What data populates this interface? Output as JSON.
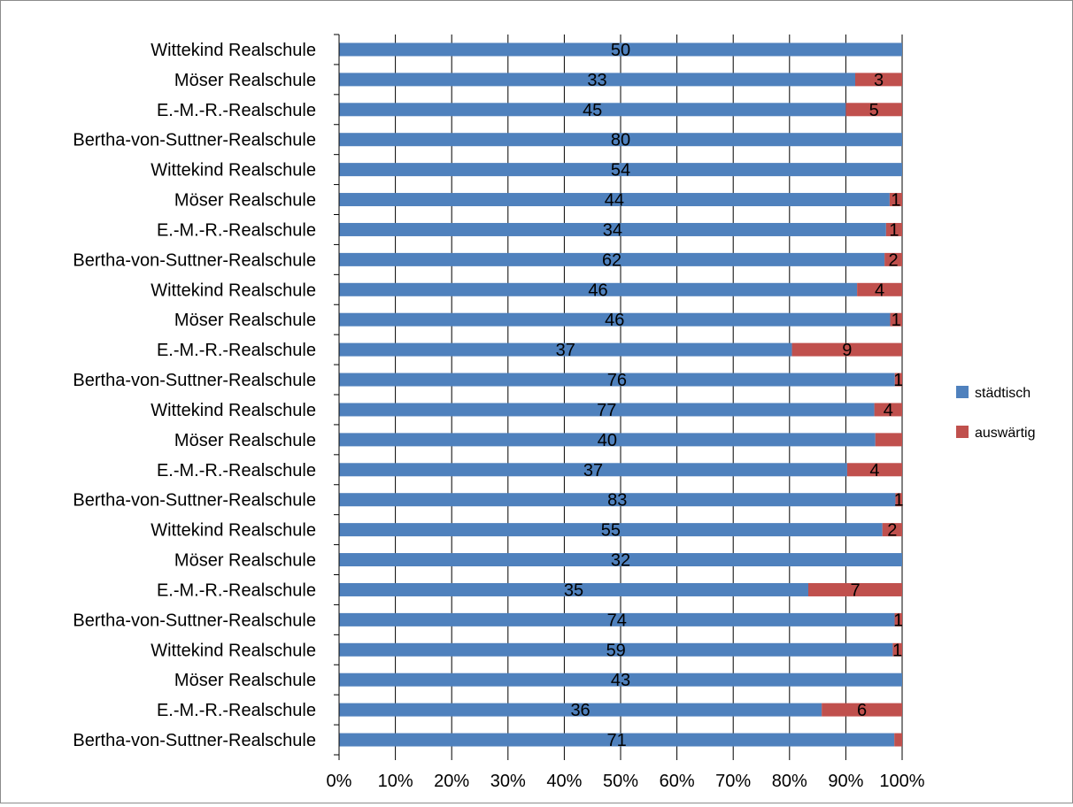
{
  "chart_data": {
    "type": "bar",
    "orientation": "horizontal",
    "stacked": "percent",
    "categories": [
      "Wittekind Realschule",
      "Möser Realschule",
      "E.-M.-R.-Realschule",
      "Bertha-von-Suttner-Realschule",
      "Wittekind Realschule",
      "Möser Realschule",
      "E.-M.-R.-Realschule",
      "Bertha-von-Suttner-Realschule",
      "Wittekind Realschule",
      "Möser Realschule",
      "E.-M.-R.-Realschule",
      "Bertha-von-Suttner-Realschule",
      "Wittekind Realschule",
      "Möser Realschule",
      "E.-M.-R.-Realschule",
      "Bertha-von-Suttner-Realschule",
      "Wittekind Realschule",
      "Möser Realschule",
      "E.-M.-R.-Realschule",
      "Bertha-von-Suttner-Realschule",
      "Wittekind Realschule",
      "Möser Realschule",
      "E.-M.-R.-Realschule",
      "Bertha-von-Suttner-Realschule"
    ],
    "series": [
      {
        "name": "städtisch",
        "color": "#4f81bd",
        "values": [
          50,
          33,
          45,
          80,
          54,
          44,
          34,
          62,
          46,
          46,
          37,
          76,
          77,
          40,
          37,
          83,
          55,
          32,
          35,
          74,
          59,
          43,
          36,
          71
        ],
        "labels": [
          "50",
          "33",
          "45",
          "80",
          "54",
          "44",
          "34",
          "62",
          "46",
          "46",
          "37",
          "76",
          "77",
          "40",
          "37",
          "83",
          "55",
          "32",
          "35",
          "74",
          "59",
          "43",
          "36",
          "71"
        ]
      },
      {
        "name": "auswärtig",
        "color": "#c0504d",
        "values": [
          0,
          3,
          5,
          0,
          0,
          1,
          1,
          2,
          4,
          1,
          9,
          1,
          4,
          2,
          4,
          1,
          2,
          0,
          7,
          1,
          1,
          0,
          6,
          1
        ],
        "labels": [
          "",
          "3",
          "5",
          "",
          "",
          "1",
          "1",
          "2",
          "4",
          "1",
          "9",
          "1",
          "4",
          "",
          "4",
          "1",
          "2",
          "",
          "7",
          "1",
          "1",
          "",
          "6",
          ""
        ]
      }
    ],
    "xaxis": {
      "ticks": [
        "0%",
        "10%",
        "20%",
        "30%",
        "40%",
        "50%",
        "60%",
        "70%",
        "80%",
        "90%",
        "100%"
      ],
      "range": [
        0,
        100
      ]
    },
    "grid": true,
    "legend": "right"
  }
}
